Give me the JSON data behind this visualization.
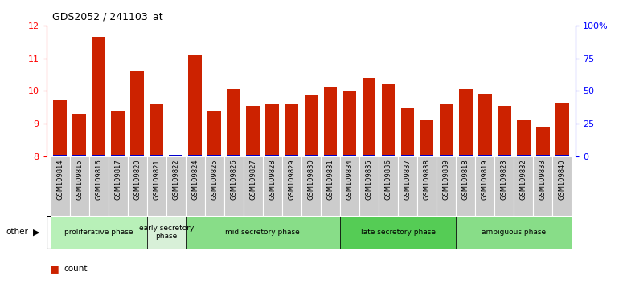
{
  "title": "GDS2052 / 241103_at",
  "samples": [
    "GSM109814",
    "GSM109815",
    "GSM109816",
    "GSM109817",
    "GSM109820",
    "GSM109821",
    "GSM109822",
    "GSM109824",
    "GSM109825",
    "GSM109826",
    "GSM109827",
    "GSM109828",
    "GSM109829",
    "GSM109830",
    "GSM109831",
    "GSM109834",
    "GSM109835",
    "GSM109836",
    "GSM109837",
    "GSM109838",
    "GSM109839",
    "GSM109818",
    "GSM109819",
    "GSM109823",
    "GSM109832",
    "GSM109833",
    "GSM109840"
  ],
  "count_values": [
    9.7,
    9.3,
    11.65,
    9.4,
    10.6,
    9.6,
    8.05,
    11.1,
    9.4,
    10.05,
    9.55,
    9.6,
    9.6,
    9.85,
    10.1,
    10.0,
    10.4,
    10.2,
    9.5,
    9.1,
    9.6,
    10.05,
    9.9,
    9.55,
    9.1,
    8.9,
    9.65
  ],
  "percentile_values": [
    3,
    2,
    4,
    3,
    4,
    3,
    1,
    3,
    3,
    3,
    3,
    3,
    3,
    3,
    3,
    3,
    3,
    3,
    3,
    2,
    3,
    3,
    3,
    3,
    2,
    2,
    3
  ],
  "phases": [
    {
      "name": "proliferative phase",
      "start": 0,
      "end": 5,
      "color": "#b8f0b8"
    },
    {
      "name": "early secretory\nphase",
      "start": 5,
      "end": 7,
      "color": "#d8f0d8"
    },
    {
      "name": "mid secretory phase",
      "start": 7,
      "end": 15,
      "color": "#88dd88"
    },
    {
      "name": "late secretory phase",
      "start": 15,
      "end": 21,
      "color": "#55cc55"
    },
    {
      "name": "ambiguous phase",
      "start": 21,
      "end": 27,
      "color": "#88dd88"
    }
  ],
  "ylim": [
    8.0,
    12.0
  ],
  "yticks": [
    8,
    9,
    10,
    11,
    12
  ],
  "right_yticks": [
    0,
    25,
    50,
    75,
    100
  ],
  "bar_color": "#cc2200",
  "percentile_color": "#0000cc",
  "bar_width": 0.7,
  "tick_bg_color": "#cccccc"
}
